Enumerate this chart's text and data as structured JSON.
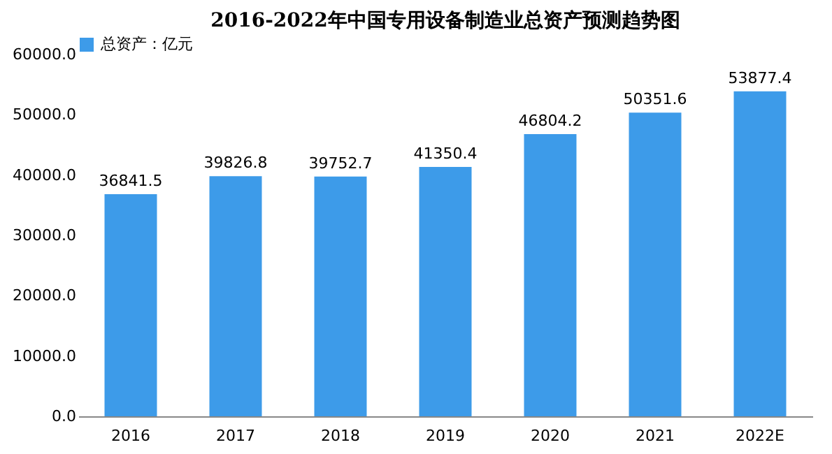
{
  "chart_data": {
    "type": "bar",
    "title": "2016-2022年中国专用设备制造业总资产预测趋势图",
    "categories": [
      "2016",
      "2017",
      "2018",
      "2019",
      "2020",
      "2021",
      "2022E"
    ],
    "series": [
      {
        "name": "总资产：亿元",
        "color": "#3d9be9",
        "values": [
          36841.5,
          39826.8,
          39752.7,
          41350.4,
          46804.2,
          50351.6,
          53877.4
        ]
      }
    ],
    "ylim": [
      0,
      60000
    ],
    "yticks": [
      {
        "value": 0,
        "label": "0.0"
      },
      {
        "value": 10000,
        "label": "10000.0"
      },
      {
        "value": 20000,
        "label": "20000.0"
      },
      {
        "value": 30000,
        "label": "30000.0"
      },
      {
        "value": 40000,
        "label": "40000.0"
      },
      {
        "value": 50000,
        "label": "50000.0"
      },
      {
        "value": 60000,
        "label": "60000.0"
      }
    ],
    "value_labels": [
      "36841.5",
      "39826.8",
      "39752.7",
      "41350.4",
      "46804.2",
      "50351.6",
      "53877.4"
    ],
    "grid": false,
    "legend": "top"
  }
}
